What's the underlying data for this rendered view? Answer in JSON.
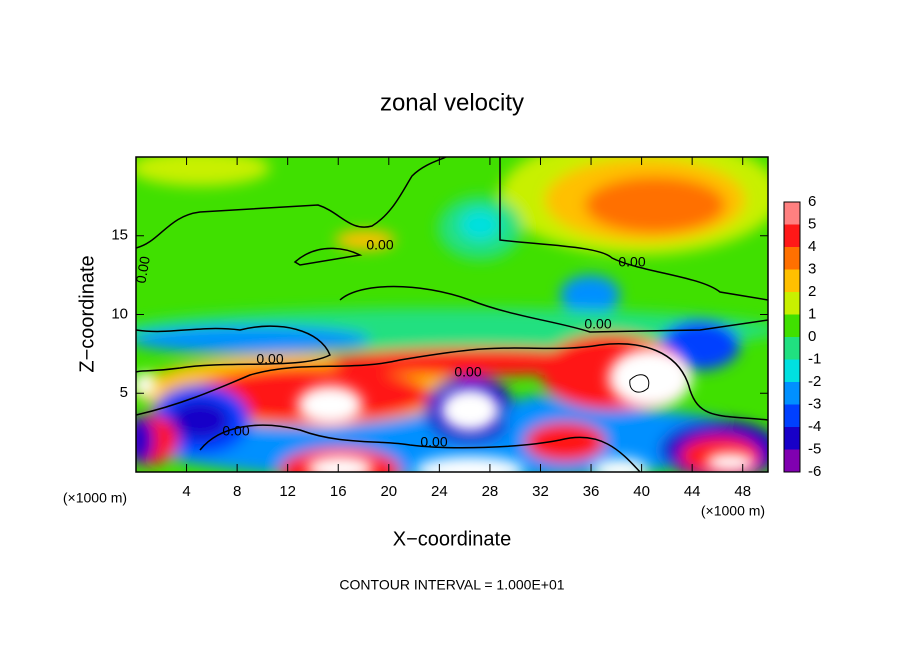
{
  "chart_data": {
    "type": "contour",
    "title": "zonal velocity",
    "x_label": "X−coordinate",
    "y_label": "Z−coordinate",
    "x_unit_label": "(×1000 m)",
    "y_unit_label": "(×1000 m)",
    "footer": "CONTOUR INTERVAL = 1.000E+01",
    "xlim": [
      0,
      50
    ],
    "ylim": [
      0,
      20
    ],
    "xticks": [
      4,
      8,
      12,
      16,
      20,
      24,
      28,
      32,
      36,
      40,
      44,
      48
    ],
    "yticks": [
      5,
      10,
      15
    ],
    "colorbar": {
      "lim": [
        -6,
        6
      ],
      "ticks": [
        6,
        5,
        4,
        3,
        2,
        1,
        0,
        -1,
        -2,
        -3,
        -4,
        -5,
        -6
      ],
      "colors": [
        "#8000b0",
        "#1800c8",
        "#0040ff",
        "#0090ff",
        "#00e0e0",
        "#20e080",
        "#40e000",
        "#c8f000",
        "#ffc000",
        "#ff7000",
        "#ff1818",
        "#ff8080"
      ]
    },
    "contour_labels": [
      "0.00",
      "0.00",
      "0.00",
      "0.00",
      "0.00",
      "0.00",
      "0.00",
      "0.00"
    ]
  }
}
